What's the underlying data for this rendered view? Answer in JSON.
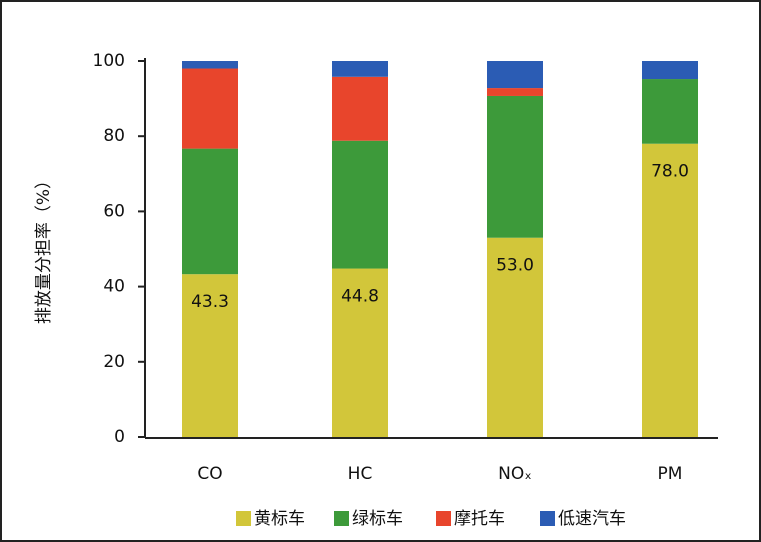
{
  "chart_data": {
    "type": "stacked_bar",
    "ylabel": "排放量分担率（%）",
    "categories": [
      "CO",
      "HC",
      "NOₓ",
      "PM"
    ],
    "series": [
      {
        "name": "黄标车",
        "color": "#d2c63a",
        "values": [
          43.3,
          44.8,
          53.0,
          78.0
        ],
        "value_labels": [
          "43.3",
          "44.8",
          "53.0",
          "78.0"
        ]
      },
      {
        "name": "绿标车",
        "color": "#3d9a3a",
        "values": [
          33.4,
          34.0,
          37.7,
          17.2
        ]
      },
      {
        "name": "摩托车",
        "color": "#e8452c",
        "values": [
          21.3,
          17.0,
          2.1,
          0
        ]
      },
      {
        "name": "低速汽车",
        "color": "#2b5cb4",
        "values": [
          2.0,
          4.2,
          7.2,
          4.8
        ]
      }
    ],
    "ylim": [
      0,
      100
    ],
    "yticks": [
      0,
      20,
      40,
      60,
      80,
      100
    ],
    "legend": "bottom"
  }
}
